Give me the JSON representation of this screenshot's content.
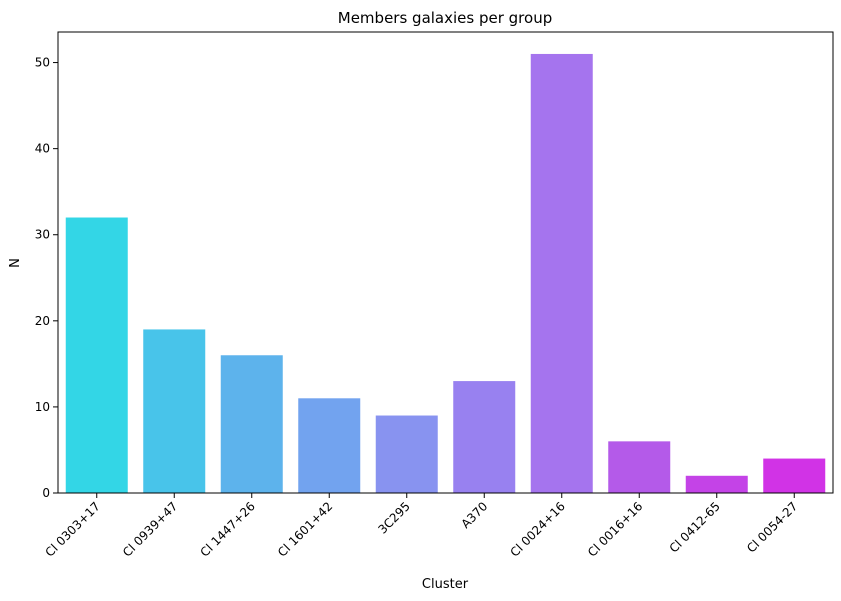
{
  "chart_data": {
    "type": "bar",
    "title": "Members galaxies per group",
    "xlabel": "Cluster",
    "ylabel": "N",
    "categories": [
      "Cl 0303+17",
      "Cl 0939+47",
      "Cl 1447+26",
      "Cl 1601+42",
      "3C295",
      "A370",
      "Cl 0024+16",
      "Cl 0016+16",
      "Cl 0412-65",
      "Cl 0054-27"
    ],
    "values": [
      32,
      19,
      16,
      11,
      9,
      13,
      51,
      6,
      2,
      4
    ],
    "colors": [
      "#33d6e6",
      "#48c4ea",
      "#5db3ec",
      "#72a3ef",
      "#8893f0",
      "#9881f0",
      "#a574ee",
      "#b45ae9",
      "#c443e7",
      "#d133e6"
    ],
    "ylim": [
      0,
      53.55
    ],
    "yticks": [
      0,
      10,
      20,
      30,
      40,
      50
    ],
    "grid": false
  }
}
